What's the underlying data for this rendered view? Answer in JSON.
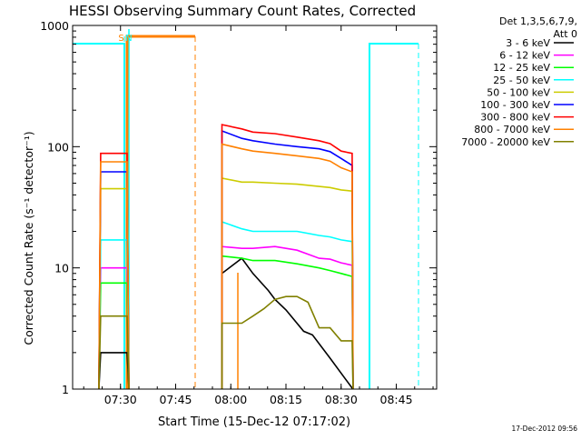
{
  "chart_data": {
    "type": "line",
    "title": "HESSI Observing Summary Count Rates, Corrected",
    "xlabel": "Start Time (15-Dec-12 07:17:02)",
    "ylabel": "Corrected Count Rate (s⁻¹ detector⁻¹)",
    "y_scale": "log",
    "ylim": [
      1,
      1000
    ],
    "xlim_min": [
      7.283,
      8.933
    ],
    "x_units": "hours (UT)",
    "x_ticks": [
      "07:30",
      "07:45",
      "08:00",
      "08:15",
      "08:30",
      "08:45"
    ],
    "y_ticks": [
      "1",
      "10",
      "100",
      "1000"
    ],
    "legend": {
      "placement": "top-right",
      "header": [
        "Det 1,3,5,6,7,9,",
        "Att 0"
      ]
    },
    "timestamp": "17-Dec-2012 09:56",
    "markers": [
      {
        "text": "S",
        "x": 7.52
      },
      {
        "text": "N",
        "x": 7.55
      }
    ],
    "series": [
      {
        "name": "3 - 6 keV",
        "color": "#000000",
        "points": [
          [
            7.53,
            2
          ],
          [
            7.55,
            0.9
          ],
          [
            7.96,
            9
          ],
          [
            8.05,
            12
          ],
          [
            8.1,
            9
          ],
          [
            8.17,
            6.5
          ],
          [
            8.2,
            5.5
          ],
          [
            8.25,
            4.5
          ],
          [
            8.33,
            3
          ],
          [
            8.37,
            2.8
          ],
          [
            8.45,
            1.8
          ],
          [
            8.55,
            0.6
          ]
        ]
      },
      {
        "name": "6 - 12 keV",
        "color": "#ff00ff",
        "points": [
          [
            7.53,
            10
          ],
          [
            7.55,
            10
          ],
          [
            7.96,
            15
          ],
          [
            8.05,
            14.5
          ],
          [
            8.1,
            14.5
          ],
          [
            8.2,
            15
          ],
          [
            8.3,
            14
          ],
          [
            8.4,
            12
          ],
          [
            8.45,
            11.8
          ],
          [
            8.5,
            11
          ],
          [
            8.55,
            10.5
          ]
        ]
      },
      {
        "name": "12 - 25 keV",
        "color": "#00ff00",
        "points": [
          [
            7.53,
            7.5
          ],
          [
            7.55,
            7.5
          ],
          [
            7.96,
            12.5
          ],
          [
            8.05,
            12
          ],
          [
            8.1,
            11.5
          ],
          [
            8.2,
            11.5
          ],
          [
            8.3,
            10.8
          ],
          [
            8.4,
            10
          ],
          [
            8.45,
            9.5
          ],
          [
            8.5,
            9
          ],
          [
            8.55,
            8.5
          ]
        ]
      },
      {
        "name": "25 - 50 keV",
        "color": "#00ffff",
        "points": [
          [
            7.53,
            17
          ],
          [
            7.55,
            17
          ],
          [
            7.96,
            24
          ],
          [
            8.05,
            21
          ],
          [
            8.1,
            20
          ],
          [
            8.2,
            20
          ],
          [
            8.3,
            20
          ],
          [
            8.4,
            18.5
          ],
          [
            8.45,
            18
          ],
          [
            8.5,
            17
          ],
          [
            8.55,
            16.5
          ]
        ]
      },
      {
        "name": "50 - 100 keV",
        "color": "#cccc00",
        "points": [
          [
            7.53,
            45
          ],
          [
            7.55,
            45
          ],
          [
            7.96,
            55
          ],
          [
            8.05,
            51
          ],
          [
            8.1,
            51
          ],
          [
            8.2,
            50
          ],
          [
            8.3,
            49
          ],
          [
            8.4,
            47
          ],
          [
            8.45,
            46
          ],
          [
            8.5,
            44
          ],
          [
            8.55,
            43
          ]
        ]
      },
      {
        "name": "100 - 300 keV",
        "color": "#0000ff",
        "points": [
          [
            7.53,
            62
          ],
          [
            7.55,
            62
          ],
          [
            7.96,
            135
          ],
          [
            8.05,
            117
          ],
          [
            8.1,
            112
          ],
          [
            8.2,
            105
          ],
          [
            8.3,
            100
          ],
          [
            8.4,
            96
          ],
          [
            8.45,
            91
          ],
          [
            8.5,
            80
          ],
          [
            8.55,
            70
          ]
        ]
      },
      {
        "name": "300 - 800 keV",
        "color": "#ff0000",
        "points": [
          [
            7.53,
            88
          ],
          [
            7.55,
            88
          ],
          [
            7.96,
            152
          ],
          [
            8.05,
            140
          ],
          [
            8.1,
            132
          ],
          [
            8.2,
            128
          ],
          [
            8.3,
            120
          ],
          [
            8.4,
            112
          ],
          [
            8.45,
            106
          ],
          [
            8.5,
            92
          ],
          [
            8.55,
            88
          ]
        ]
      },
      {
        "name": "800 - 7000 keV",
        "color": "#ff8000",
        "points": [
          [
            7.53,
            75
          ],
          [
            7.55,
            75
          ],
          [
            7.96,
            105
          ],
          [
            8.05,
            96
          ],
          [
            8.1,
            92
          ],
          [
            8.2,
            88
          ],
          [
            8.3,
            84
          ],
          [
            8.4,
            80
          ],
          [
            8.45,
            76
          ],
          [
            8.5,
            67
          ],
          [
            8.55,
            62
          ]
        ]
      },
      {
        "name": "7000 - 20000 keV",
        "color": "#808000",
        "points": [
          [
            7.53,
            4
          ],
          [
            7.55,
            4
          ],
          [
            7.96,
            3.5
          ],
          [
            8.05,
            3.5
          ],
          [
            8.1,
            4
          ],
          [
            8.15,
            4.6
          ],
          [
            8.2,
            5.5
          ],
          [
            8.25,
            5.8
          ],
          [
            8.3,
            5.8
          ],
          [
            8.35,
            5.2
          ],
          [
            8.4,
            3.2
          ],
          [
            8.45,
            3.2
          ],
          [
            8.5,
            2.5
          ],
          [
            8.55,
            2.5
          ]
        ]
      }
    ]
  }
}
